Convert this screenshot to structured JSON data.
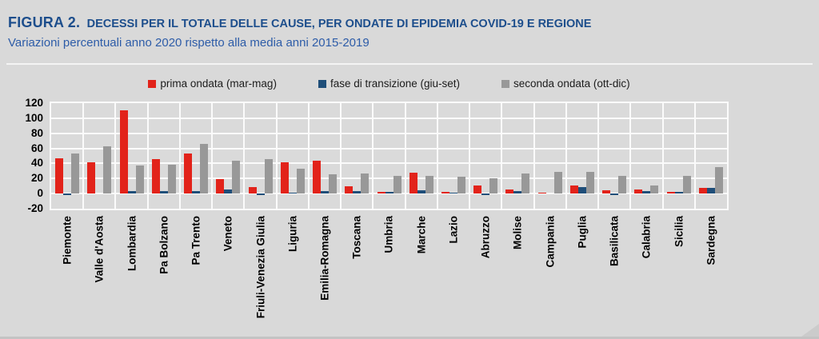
{
  "header": {
    "figura_label": "FIGURA 2.",
    "title": "DECESSI PER IL TOTALE DELLE CAUSE, PER ONDATE DI EPIDEMIA COVID-19 E REGIONE",
    "subtitle": "Variazioni percentuali anno 2020 rispetto alla media anni 2015-2019"
  },
  "colors": {
    "page_bg": "#d9d9d9",
    "title_text": "#1d4e8c",
    "subtitle_text": "#2d5ca8",
    "gridline": "#fbfbfb",
    "axis_text": "#000000"
  },
  "chart_data": {
    "type": "bar",
    "title": "Decessi per il totale delle cause, per ondate di epidemia COVID-19 e regione",
    "subtitle": "Variazioni percentuali anno 2020 rispetto alla media anni 2015-2019",
    "categories": [
      "Piemonte",
      "Valle d'Aosta",
      "Lombardia",
      "Pa Bolzano",
      "Pa Trento",
      "Veneto",
      "Friuli-Venezia Giulia",
      "Liguria",
      "Emilia-Romagna",
      "Toscana",
      "Umbria",
      "Marche",
      "Lazio",
      "Abruzzo",
      "Molise",
      "Campania",
      "Puglia",
      "Basilicata",
      "Calabria",
      "Sicilia",
      "Sardegna"
    ],
    "series": [
      {
        "name": "prima ondata (mar-mag)",
        "color": "#e2231a",
        "values": [
          47,
          42,
          110,
          46,
          53,
          19,
          9,
          42,
          44,
          10,
          2,
          28,
          2,
          11,
          5,
          1,
          11,
          4,
          5,
          2,
          8
        ]
      },
      {
        "name": "fase di transizione (giu-set)",
        "color": "#1f4e79",
        "values": [
          -2,
          0,
          3,
          3,
          3,
          5,
          -2,
          1,
          3,
          3,
          2,
          4,
          1,
          -2,
          3,
          0,
          9,
          -2,
          3,
          2,
          8
        ]
      },
      {
        "name": "seconda ondata (ott-dic)",
        "color": "#989898",
        "values": [
          53,
          63,
          37,
          38,
          66,
          44,
          46,
          33,
          26,
          27,
          24,
          24,
          22,
          20,
          27,
          29,
          29,
          23,
          11,
          24,
          35
        ]
      }
    ],
    "ylim": [
      -20,
      120
    ],
    "yticks": [
      120,
      100,
      80,
      60,
      40,
      20,
      0,
      -20
    ],
    "grid": true,
    "legend_position": "top"
  }
}
